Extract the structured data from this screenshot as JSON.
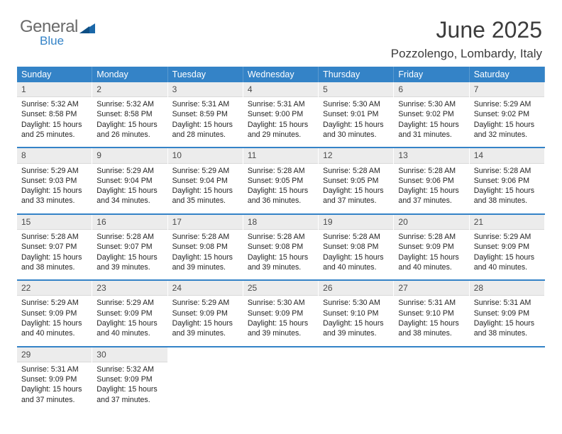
{
  "logo": {
    "part1": "General",
    "part2": "Blue"
  },
  "title": "June 2025",
  "location": "Pozzolengo, Lombardy, Italy",
  "colors": {
    "header_bg": "#3483c7",
    "header_text": "#ffffff",
    "daynum_bg": "#ececec",
    "daynum_text": "#4a4a4a",
    "sep": "#3483c7",
    "logo_gray": "#6a6a6a",
    "logo_blue": "#3483c7"
  },
  "weekdays": [
    "Sunday",
    "Monday",
    "Tuesday",
    "Wednesday",
    "Thursday",
    "Friday",
    "Saturday"
  ],
  "days": [
    {
      "n": "1",
      "sunrise": "Sunrise: 5:32 AM",
      "sunset": "Sunset: 8:58 PM",
      "day1": "Daylight: 15 hours",
      "day2": "and 25 minutes."
    },
    {
      "n": "2",
      "sunrise": "Sunrise: 5:32 AM",
      "sunset": "Sunset: 8:58 PM",
      "day1": "Daylight: 15 hours",
      "day2": "and 26 minutes."
    },
    {
      "n": "3",
      "sunrise": "Sunrise: 5:31 AM",
      "sunset": "Sunset: 8:59 PM",
      "day1": "Daylight: 15 hours",
      "day2": "and 28 minutes."
    },
    {
      "n": "4",
      "sunrise": "Sunrise: 5:31 AM",
      "sunset": "Sunset: 9:00 PM",
      "day1": "Daylight: 15 hours",
      "day2": "and 29 minutes."
    },
    {
      "n": "5",
      "sunrise": "Sunrise: 5:30 AM",
      "sunset": "Sunset: 9:01 PM",
      "day1": "Daylight: 15 hours",
      "day2": "and 30 minutes."
    },
    {
      "n": "6",
      "sunrise": "Sunrise: 5:30 AM",
      "sunset": "Sunset: 9:02 PM",
      "day1": "Daylight: 15 hours",
      "day2": "and 31 minutes."
    },
    {
      "n": "7",
      "sunrise": "Sunrise: 5:29 AM",
      "sunset": "Sunset: 9:02 PM",
      "day1": "Daylight: 15 hours",
      "day2": "and 32 minutes."
    },
    {
      "n": "8",
      "sunrise": "Sunrise: 5:29 AM",
      "sunset": "Sunset: 9:03 PM",
      "day1": "Daylight: 15 hours",
      "day2": "and 33 minutes."
    },
    {
      "n": "9",
      "sunrise": "Sunrise: 5:29 AM",
      "sunset": "Sunset: 9:04 PM",
      "day1": "Daylight: 15 hours",
      "day2": "and 34 minutes."
    },
    {
      "n": "10",
      "sunrise": "Sunrise: 5:29 AM",
      "sunset": "Sunset: 9:04 PM",
      "day1": "Daylight: 15 hours",
      "day2": "and 35 minutes."
    },
    {
      "n": "11",
      "sunrise": "Sunrise: 5:28 AM",
      "sunset": "Sunset: 9:05 PM",
      "day1": "Daylight: 15 hours",
      "day2": "and 36 minutes."
    },
    {
      "n": "12",
      "sunrise": "Sunrise: 5:28 AM",
      "sunset": "Sunset: 9:05 PM",
      "day1": "Daylight: 15 hours",
      "day2": "and 37 minutes."
    },
    {
      "n": "13",
      "sunrise": "Sunrise: 5:28 AM",
      "sunset": "Sunset: 9:06 PM",
      "day1": "Daylight: 15 hours",
      "day2": "and 37 minutes."
    },
    {
      "n": "14",
      "sunrise": "Sunrise: 5:28 AM",
      "sunset": "Sunset: 9:06 PM",
      "day1": "Daylight: 15 hours",
      "day2": "and 38 minutes."
    },
    {
      "n": "15",
      "sunrise": "Sunrise: 5:28 AM",
      "sunset": "Sunset: 9:07 PM",
      "day1": "Daylight: 15 hours",
      "day2": "and 38 minutes."
    },
    {
      "n": "16",
      "sunrise": "Sunrise: 5:28 AM",
      "sunset": "Sunset: 9:07 PM",
      "day1": "Daylight: 15 hours",
      "day2": "and 39 minutes."
    },
    {
      "n": "17",
      "sunrise": "Sunrise: 5:28 AM",
      "sunset": "Sunset: 9:08 PM",
      "day1": "Daylight: 15 hours",
      "day2": "and 39 minutes."
    },
    {
      "n": "18",
      "sunrise": "Sunrise: 5:28 AM",
      "sunset": "Sunset: 9:08 PM",
      "day1": "Daylight: 15 hours",
      "day2": "and 39 minutes."
    },
    {
      "n": "19",
      "sunrise": "Sunrise: 5:28 AM",
      "sunset": "Sunset: 9:08 PM",
      "day1": "Daylight: 15 hours",
      "day2": "and 40 minutes."
    },
    {
      "n": "20",
      "sunrise": "Sunrise: 5:28 AM",
      "sunset": "Sunset: 9:09 PM",
      "day1": "Daylight: 15 hours",
      "day2": "and 40 minutes."
    },
    {
      "n": "21",
      "sunrise": "Sunrise: 5:29 AM",
      "sunset": "Sunset: 9:09 PM",
      "day1": "Daylight: 15 hours",
      "day2": "and 40 minutes."
    },
    {
      "n": "22",
      "sunrise": "Sunrise: 5:29 AM",
      "sunset": "Sunset: 9:09 PM",
      "day1": "Daylight: 15 hours",
      "day2": "and 40 minutes."
    },
    {
      "n": "23",
      "sunrise": "Sunrise: 5:29 AM",
      "sunset": "Sunset: 9:09 PM",
      "day1": "Daylight: 15 hours",
      "day2": "and 40 minutes."
    },
    {
      "n": "24",
      "sunrise": "Sunrise: 5:29 AM",
      "sunset": "Sunset: 9:09 PM",
      "day1": "Daylight: 15 hours",
      "day2": "and 39 minutes."
    },
    {
      "n": "25",
      "sunrise": "Sunrise: 5:30 AM",
      "sunset": "Sunset: 9:09 PM",
      "day1": "Daylight: 15 hours",
      "day2": "and 39 minutes."
    },
    {
      "n": "26",
      "sunrise": "Sunrise: 5:30 AM",
      "sunset": "Sunset: 9:10 PM",
      "day1": "Daylight: 15 hours",
      "day2": "and 39 minutes."
    },
    {
      "n": "27",
      "sunrise": "Sunrise: 5:31 AM",
      "sunset": "Sunset: 9:10 PM",
      "day1": "Daylight: 15 hours",
      "day2": "and 38 minutes."
    },
    {
      "n": "28",
      "sunrise": "Sunrise: 5:31 AM",
      "sunset": "Sunset: 9:09 PM",
      "day1": "Daylight: 15 hours",
      "day2": "and 38 minutes."
    },
    {
      "n": "29",
      "sunrise": "Sunrise: 5:31 AM",
      "sunset": "Sunset: 9:09 PM",
      "day1": "Daylight: 15 hours",
      "day2": "and 37 minutes."
    },
    {
      "n": "30",
      "sunrise": "Sunrise: 5:32 AM",
      "sunset": "Sunset: 9:09 PM",
      "day1": "Daylight: 15 hours",
      "day2": "and 37 minutes."
    }
  ]
}
